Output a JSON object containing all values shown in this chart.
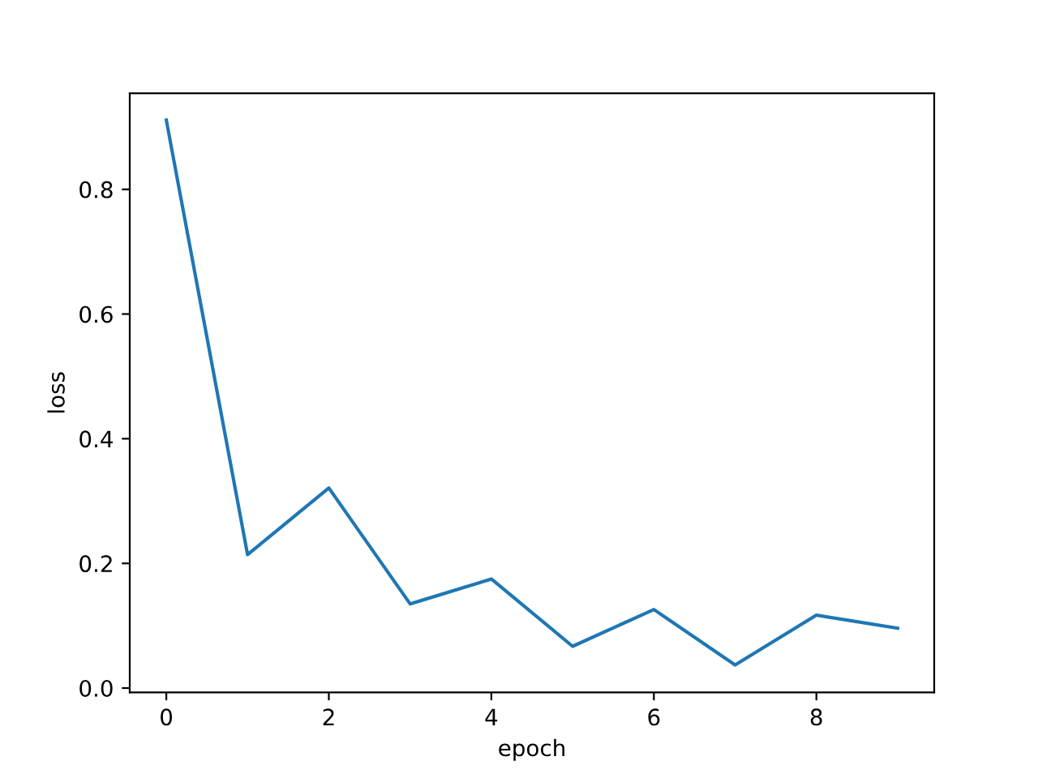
{
  "chart_data": {
    "type": "line",
    "xlabel": "epoch",
    "ylabel": "loss",
    "x": [
      0,
      1,
      2,
      3,
      4,
      5,
      6,
      7,
      8,
      9
    ],
    "series": [
      {
        "color": "#1f77b4",
        "values": [
          0.911,
          0.214,
          0.321,
          0.135,
          0.175,
          0.067,
          0.126,
          0.037,
          0.117,
          0.096
        ]
      }
    ],
    "xlim": [
      -0.45,
      9.45
    ],
    "xticks": [
      0,
      2,
      4,
      6,
      8
    ],
    "ylim": [
      -0.007,
      0.954
    ],
    "yticks": [
      {
        "value": 0.0,
        "label": "0.0"
      },
      {
        "value": 0.2,
        "label": "0.2"
      },
      {
        "value": 0.4,
        "label": "0.4"
      },
      {
        "value": 0.6,
        "label": "0.6"
      },
      {
        "value": 0.8,
        "label": "0.8"
      }
    ],
    "grid": false
  }
}
